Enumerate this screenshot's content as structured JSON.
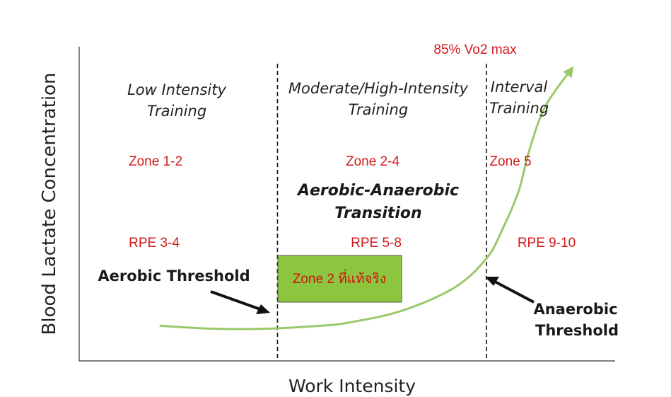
{
  "chart_data": {
    "type": "line",
    "title": "",
    "xlabel": "Work Intensity",
    "ylabel": "Blood Lactate Concentration",
    "series": [
      {
        "name": "",
        "x": [
          0.15,
          0.25,
          0.35,
          0.45,
          0.5,
          0.6,
          0.7,
          0.76,
          0.79,
          0.82,
          0.84,
          0.87,
          0.92
        ],
        "y": [
          0.12,
          0.11,
          0.11,
          0.12,
          0.13,
          0.17,
          0.25,
          0.35,
          0.45,
          0.58,
          0.72,
          0.87,
          1.0
        ]
      }
    ],
    "thresholds": [
      0.37,
      0.76
    ],
    "regions": [
      {
        "title_line1": "Low Intensity",
        "title_line2": "Training",
        "zone": "Zone 1-2",
        "rpe": "RPE 3-4"
      },
      {
        "title_line1": "Moderate/High-Intensity",
        "title_line2": "Training",
        "zone": "Zone 2-4",
        "rpe": "RPE 5-8"
      },
      {
        "title_line1": "Interval",
        "title_line2": "Training",
        "zone": "Zone 5",
        "rpe": "RPE 9-10"
      }
    ],
    "annotations": {
      "vo2": "85% Vo2 max",
      "transition_line1": "Aerobic-Anaerobic",
      "transition_line2": "Transition",
      "aerobic_threshold": "Aerobic Threshold",
      "anaerobic_line1": "Anaerobic",
      "anaerobic_line2": "Threshold",
      "highlight": "Zone 2 ที่แท้จริง"
    },
    "colors": {
      "curve": "#9bc86a",
      "highlight_fill": "#8cc63f",
      "accent_text": "#d11a1a"
    }
  }
}
